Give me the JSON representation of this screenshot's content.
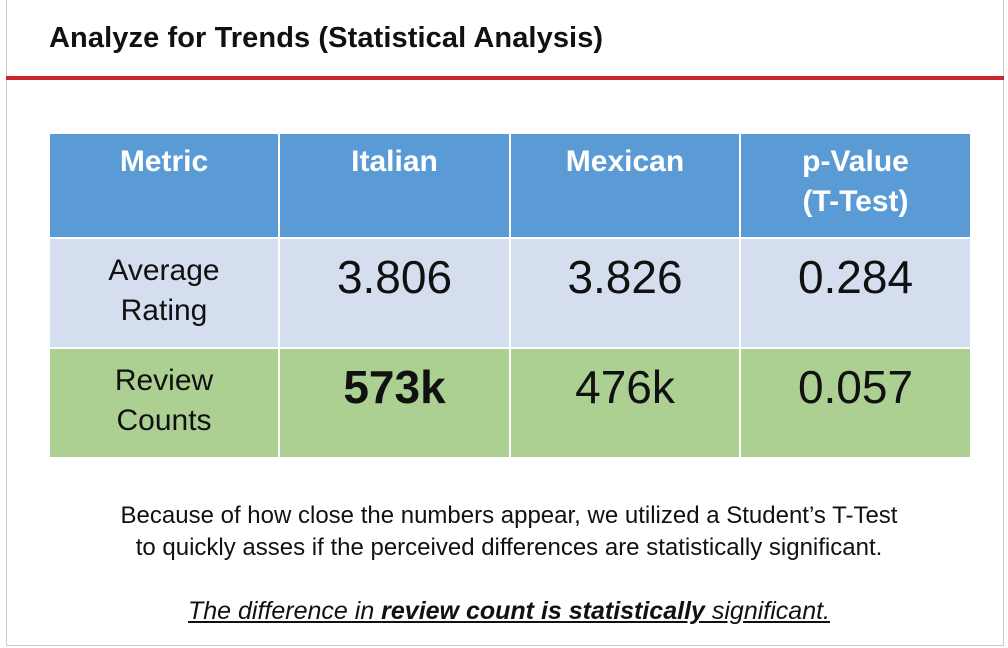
{
  "title": "Analyze for Trends (Statistical Analysis)",
  "table": {
    "headers": [
      "Metric",
      "Italian",
      "Mexican",
      "p-Value",
      "(T-Test)"
    ],
    "rows": [
      {
        "label_line1": "Average",
        "label_line2": "Rating",
        "italian": "3.806",
        "mexican": "3.826",
        "p_value": "0.284"
      },
      {
        "label_line1": "Review",
        "label_line2": "Counts",
        "italian": "573k",
        "mexican": "476k",
        "p_value": "0.057"
      }
    ]
  },
  "colors": {
    "header_bg": "#5b9bd5",
    "rating_row_bg": "#d4deee",
    "reviews_row_bg": "#abd092",
    "title_rule": "#c8272d"
  },
  "paragraph": {
    "line1": "Because of how close the numbers appear, we utilized a Student’s T-Test",
    "line2": "to quickly asses if the perceived differences are statistically significant."
  },
  "conclusion": {
    "part1": "The difference in ",
    "part2_bold": "review count is statistically",
    "part3": " significant."
  }
}
